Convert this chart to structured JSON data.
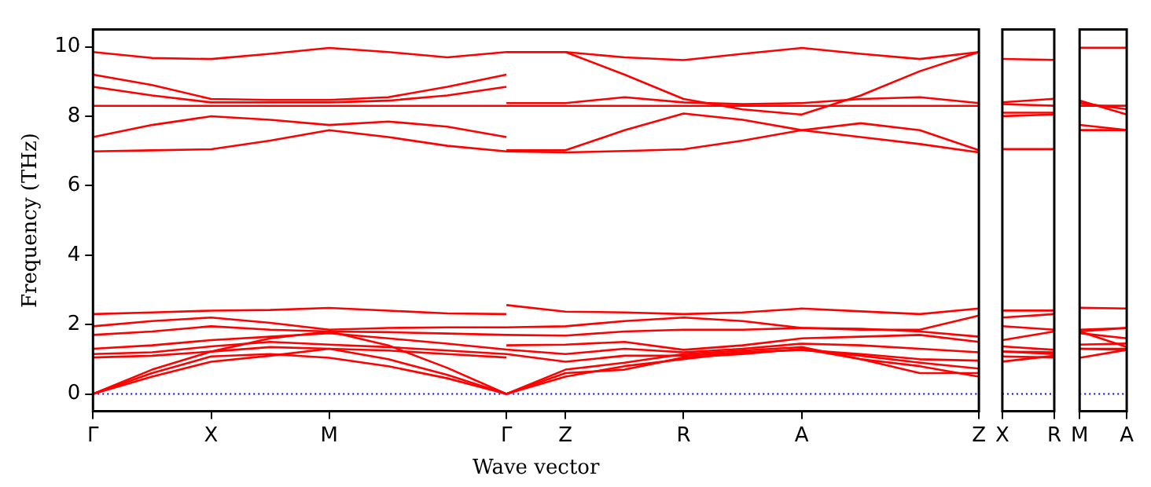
{
  "chart_data": [
    {
      "type": "line",
      "xlabel": "Wave vector",
      "ylabel": "Frequency (THz)",
      "grid": false,
      "categories": [
        "Γ",
        null,
        "X",
        null,
        "M",
        null,
        null,
        "Γ",
        "Z",
        null,
        "R",
        null,
        "A",
        null,
        null,
        "Z"
      ],
      "ylim": [
        -0.5,
        10.5
      ],
      "yticks": [
        0,
        2,
        4,
        6,
        8,
        10
      ],
      "ref_lines": [
        {
          "axis": "y",
          "value": 0,
          "color": "#0000ff",
          "line_style": "dotted"
        }
      ],
      "series": [
        {
          "color": "#ff0000",
          "values": [
            9.85,
            9.68,
            9.65,
            9.8,
            9.97,
            9.85,
            9.7,
            9.85,
            9.85,
            9.7,
            9.62,
            9.8,
            9.97,
            9.8,
            9.65,
            9.85
          ]
        },
        {
          "color": "#ff0000",
          "values": [
            9.2,
            8.9,
            8.5,
            8.47,
            8.47,
            8.55,
            8.85,
            9.2,
            null,
            null,
            null,
            null,
            null,
            null,
            null,
            null
          ]
        },
        {
          "color": "#ff0000",
          "values": [
            8.85,
            8.6,
            8.4,
            8.4,
            8.4,
            8.45,
            8.6,
            8.85,
            null,
            null,
            null,
            null,
            null,
            null,
            null,
            null
          ]
        },
        {
          "color": "#ff0000",
          "values": [
            8.3,
            8.3,
            8.3,
            8.3,
            8.3,
            8.3,
            8.3,
            8.3,
            8.3,
            8.3,
            8.3,
            8.3,
            8.3,
            8.3,
            8.3,
            8.3
          ]
        },
        {
          "color": "#ff0000",
          "values": [
            7.4,
            7.75,
            8.0,
            7.9,
            7.75,
            7.85,
            7.7,
            7.4,
            null,
            null,
            null,
            null,
            null,
            null,
            null,
            null
          ]
        },
        {
          "color": "#ff0000",
          "values": [
            6.99,
            7.02,
            7.05,
            7.3,
            7.6,
            7.4,
            7.15,
            6.99,
            6.96,
            7.0,
            7.05,
            7.3,
            7.6,
            7.4,
            7.2,
            6.96
          ]
        },
        {
          "color": "#ff0000",
          "values": [
            null,
            null,
            null,
            null,
            null,
            null,
            null,
            9.85,
            9.85,
            9.2,
            8.5,
            8.2,
            8.05,
            8.6,
            9.3,
            9.85
          ]
        },
        {
          "color": "#ff0000",
          "values": [
            null,
            null,
            null,
            null,
            null,
            null,
            null,
            8.38,
            8.38,
            8.55,
            8.4,
            8.35,
            8.38,
            8.5,
            8.55,
            8.38
          ]
        },
        {
          "color": "#ff0000",
          "values": [
            null,
            null,
            null,
            null,
            null,
            null,
            null,
            7.02,
            7.02,
            7.6,
            8.08,
            7.9,
            7.6,
            7.8,
            7.6,
            7.02
          ]
        },
        {
          "color": "#ff0000",
          "values": [
            2.3,
            2.35,
            2.4,
            2.42,
            2.48,
            2.4,
            2.32,
            2.3,
            null,
            null,
            null,
            null,
            null,
            null,
            null,
            null
          ]
        },
        {
          "color": "#ff0000",
          "values": [
            null,
            null,
            null,
            null,
            null,
            null,
            null,
            2.56,
            2.37,
            2.35,
            2.3,
            2.35,
            2.46,
            2.38,
            2.3,
            2.46
          ]
        },
        {
          "color": "#ff0000",
          "values": [
            1.95,
            2.1,
            2.2,
            2.05,
            1.85,
            1.9,
            1.92,
            1.92,
            1.95,
            2.1,
            2.2,
            2.1,
            1.9,
            1.85,
            1.85,
            2.26
          ]
        },
        {
          "color": "#ff0000",
          "values": [
            1.7,
            1.8,
            1.95,
            1.85,
            1.8,
            1.78,
            1.74,
            1.7,
            1.68,
            1.8,
            1.85,
            1.85,
            1.9,
            1.88,
            1.8,
            1.65
          ]
        },
        {
          "color": "#ff0000",
          "values": [
            1.3,
            1.4,
            1.55,
            1.65,
            1.75,
            1.6,
            1.45,
            1.28,
            1.15,
            1.3,
            1.2,
            1.3,
            1.45,
            1.4,
            1.3,
            1.2
          ]
        },
        {
          "color": "#ff0000",
          "values": [
            1.15,
            1.2,
            1.37,
            1.5,
            1.42,
            1.35,
            1.25,
            1.15,
            0.93,
            1.1,
            1.1,
            1.2,
            1.27,
            1.15,
            1.0,
            0.96
          ]
        },
        {
          "color": "#ff0000",
          "values": [
            1.05,
            1.1,
            1.22,
            1.35,
            1.3,
            1.25,
            1.15,
            1.05,
            null,
            null,
            null,
            null,
            null,
            null,
            null,
            null
          ]
        },
        {
          "color": "#ff0000",
          "values": [
            null,
            null,
            null,
            null,
            null,
            null,
            null,
            1.4,
            1.42,
            1.5,
            1.27,
            1.4,
            1.6,
            1.65,
            1.7,
            1.5
          ]
        },
        {
          "color": "#ff0000",
          "values": [
            0,
            0.6,
            1.08,
            1.15,
            1.04,
            0.8,
            0.45,
            0,
            0.5,
            0.8,
            1.0,
            1.2,
            1.27,
            1.1,
            0.9,
            0.73
          ]
        },
        {
          "color": "#ff0000",
          "values": [
            0,
            0.5,
            0.93,
            1.1,
            1.3,
            1.0,
            0.55,
            0,
            0.6,
            0.7,
            1.05,
            1.15,
            1.3,
            1.0,
            0.8,
            0.5
          ]
        },
        {
          "color": "#ff0000",
          "values": [
            0,
            0.7,
            1.22,
            1.6,
            1.8,
            1.4,
            0.75,
            0,
            0.7,
            0.9,
            1.15,
            1.25,
            1.35,
            1.0,
            0.6,
            0.6
          ]
        }
      ]
    },
    {
      "type": "line",
      "grid": false,
      "tick_labels": "x",
      "categories": [
        "X",
        "R"
      ],
      "ylim": [
        -0.5,
        10.5
      ],
      "ref_lines": [
        {
          "axis": "y",
          "value": 0,
          "color": "#0000ff",
          "line_style": "dotted"
        }
      ],
      "series": [
        {
          "color": "#ff0000",
          "values": [
            9.65,
            9.62
          ]
        },
        {
          "color": "#ff0000",
          "values": [
            8.4,
            8.5
          ]
        },
        {
          "color": "#ff0000",
          "values": [
            8.35,
            8.3
          ]
        },
        {
          "color": "#ff0000",
          "values": [
            8.1,
            8.1
          ]
        },
        {
          "color": "#ff0000",
          "values": [
            8.0,
            8.05
          ]
        },
        {
          "color": "#ff0000",
          "values": [
            7.05,
            7.05
          ]
        },
        {
          "color": "#ff0000",
          "values": [
            2.4,
            2.4
          ]
        },
        {
          "color": "#ff0000",
          "values": [
            2.2,
            2.3
          ]
        },
        {
          "color": "#ff0000",
          "values": [
            1.95,
            1.85
          ]
        },
        {
          "color": "#ff0000",
          "values": [
            1.55,
            1.8
          ]
        },
        {
          "color": "#ff0000",
          "values": [
            1.37,
            1.27
          ]
        },
        {
          "color": "#ff0000",
          "values": [
            1.22,
            1.2
          ]
        },
        {
          "color": "#ff0000",
          "values": [
            1.08,
            1.05
          ]
        },
        {
          "color": "#ff0000",
          "values": [
            0.93,
            1.1
          ]
        },
        {
          "color": "#ff0000",
          "values": [
            1.22,
            1.15
          ]
        }
      ]
    },
    {
      "type": "line",
      "grid": false,
      "tick_labels": "x",
      "categories": [
        "M",
        "A"
      ],
      "ylim": [
        -0.5,
        10.5
      ],
      "ref_lines": [
        {
          "axis": "y",
          "value": 0,
          "color": "#0000ff",
          "line_style": "dotted"
        }
      ],
      "series": [
        {
          "color": "#ff0000",
          "values": [
            9.97,
            9.97
          ]
        },
        {
          "color": "#ff0000",
          "values": [
            8.45,
            8.05
          ]
        },
        {
          "color": "#ff0000",
          "values": [
            8.38,
            8.2
          ]
        },
        {
          "color": "#ff0000",
          "values": [
            8.3,
            8.3
          ]
        },
        {
          "color": "#ff0000",
          "values": [
            7.75,
            7.6
          ]
        },
        {
          "color": "#ff0000",
          "values": [
            7.6,
            7.6
          ]
        },
        {
          "color": "#ff0000",
          "values": [
            2.48,
            2.46
          ]
        },
        {
          "color": "#ff0000",
          "values": [
            1.85,
            1.9
          ]
        },
        {
          "color": "#ff0000",
          "values": [
            1.8,
            1.9
          ]
        },
        {
          "color": "#ff0000",
          "values": [
            1.75,
            1.6
          ]
        },
        {
          "color": "#ff0000",
          "values": [
            1.42,
            1.45
          ]
        },
        {
          "color": "#ff0000",
          "values": [
            1.3,
            1.27
          ]
        },
        {
          "color": "#ff0000",
          "values": [
            1.04,
            1.27
          ]
        },
        {
          "color": "#ff0000",
          "values": [
            1.3,
            1.3
          ]
        },
        {
          "color": "#ff0000",
          "values": [
            1.8,
            1.35
          ]
        }
      ]
    }
  ]
}
